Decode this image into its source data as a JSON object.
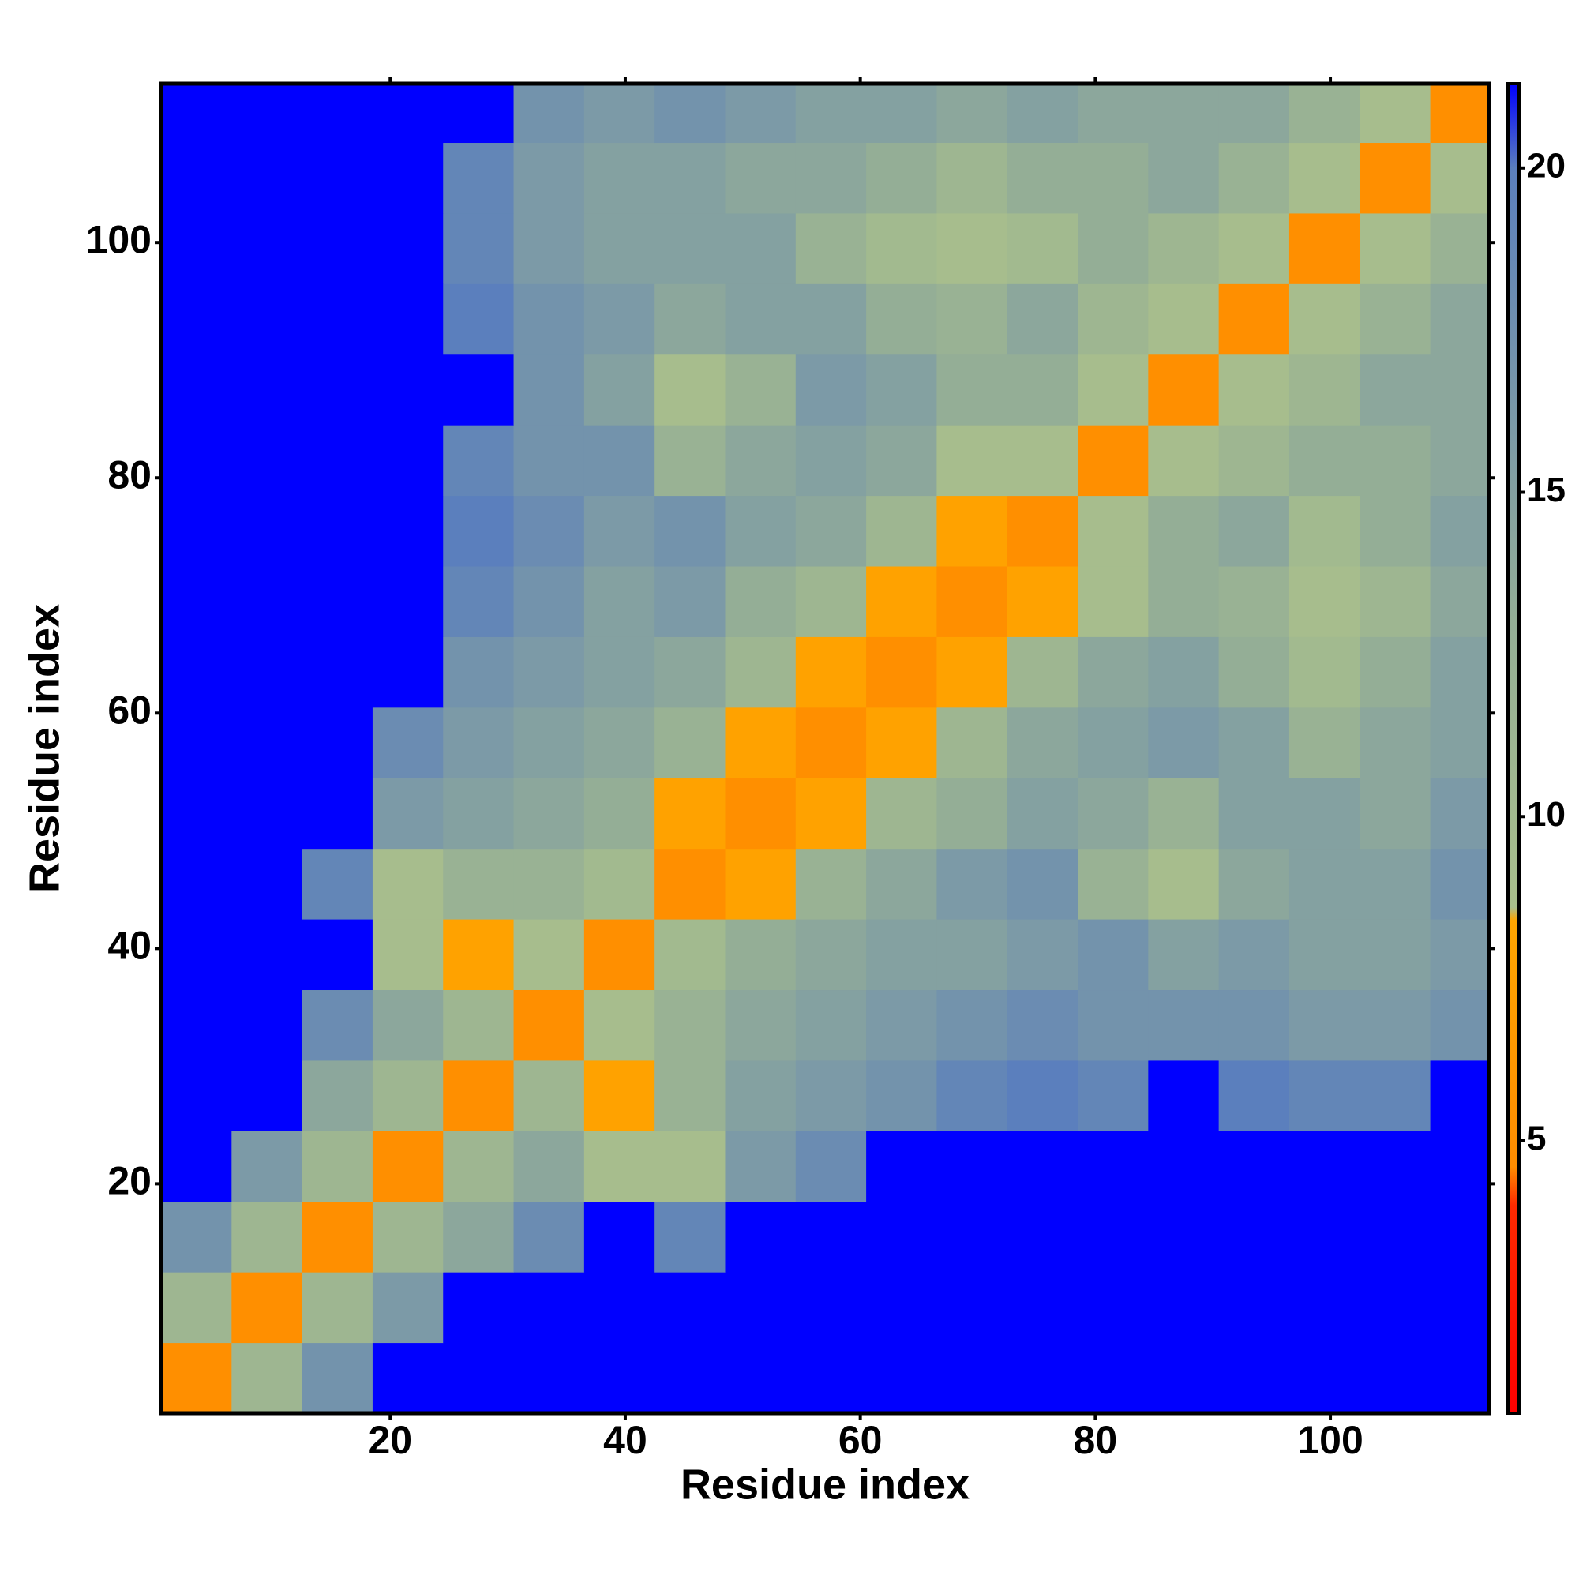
{
  "chart_data": {
    "type": "heatmap",
    "xlabel": "Residue index",
    "ylabel": "Residue index",
    "xlim": [
      0.5,
      113.5
    ],
    "ylim": [
      0.5,
      113.5
    ],
    "xticks": [
      20,
      40,
      60,
      80,
      100
    ],
    "yticks": [
      20,
      40,
      60,
      80,
      100
    ],
    "xbins": [
      0.5,
      6.5,
      12.5,
      18.5,
      24.5,
      30.5,
      36.5,
      42.5,
      48.5,
      54.5,
      60.5,
      66.5,
      72.5,
      78.5,
      84.5,
      90.5,
      96.5,
      102.5,
      108.5,
      113.5
    ],
    "ybins": [
      0.5,
      6.5,
      12.5,
      18.5,
      24.5,
      30.5,
      36.5,
      42.5,
      48.5,
      54.5,
      60.5,
      66.5,
      72.5,
      78.5,
      84.5,
      90.5,
      96.5,
      102.5,
      108.5,
      113.5
    ],
    "clim": [
      0.8,
      21.3
    ],
    "cticks": [
      5,
      10,
      15,
      20
    ],
    "colorscale": [
      [
        0.8,
        "#ff0000"
      ],
      [
        4,
        "#ff2a00"
      ],
      [
        4.6,
        "#ff8c00"
      ],
      [
        8.4,
        "#ffa500"
      ],
      [
        8.6,
        "#a9bf8c"
      ],
      [
        13,
        "#94ae96"
      ],
      [
        20,
        "#5b7fbd"
      ],
      [
        21.3,
        "#0000ff"
      ]
    ],
    "values": [
      [
        5,
        11,
        17,
        21.3,
        21.3,
        21.3,
        21.3,
        21.3,
        21.3,
        21.3,
        21.3,
        21.3,
        21.3,
        21.3,
        21.3,
        21.3,
        21.3,
        21.3,
        21.3
      ],
      [
        11,
        5,
        11,
        16,
        21.3,
        21.3,
        21.3,
        21.3,
        21.3,
        21.3,
        21.3,
        21.3,
        21.3,
        21.3,
        21.3,
        21.3,
        21.3,
        21.3,
        21.3
      ],
      [
        17,
        11,
        5,
        11,
        14,
        18,
        21.3,
        19,
        21.3,
        21.3,
        21.3,
        21.3,
        21.3,
        21.3,
        21.3,
        21.3,
        21.3,
        21.3,
        21.3
      ],
      [
        21.3,
        16,
        11,
        5,
        11,
        14,
        9,
        9,
        16,
        18,
        21.3,
        21.3,
        21.3,
        21.3,
        21.3,
        21.3,
        21.3,
        21.3,
        21.3
      ],
      [
        21.3,
        21.3,
        14,
        11,
        5,
        11,
        8,
        12,
        15,
        16,
        17,
        19,
        20,
        19,
        21.3,
        20,
        19,
        19,
        21.3
      ],
      [
        21.3,
        21.3,
        18,
        14,
        11,
        5,
        9,
        12,
        14,
        15,
        16,
        17,
        18,
        17,
        17,
        17,
        16,
        16,
        17
      ],
      [
        21.3,
        21.3,
        21.3,
        9,
        8,
        9,
        5,
        10,
        13,
        14,
        15,
        15,
        16,
        17,
        15,
        16,
        15,
        15,
        16
      ],
      [
        21.3,
        21.3,
        19,
        9,
        12,
        12,
        10,
        5,
        8,
        12,
        14,
        16,
        17,
        12,
        9,
        14,
        15,
        15,
        17
      ],
      [
        21.3,
        21.3,
        21.3,
        16,
        15,
        14,
        13,
        8,
        5,
        8,
        11,
        13,
        15,
        14,
        12,
        15,
        15,
        14,
        16
      ],
      [
        21.3,
        21.3,
        21.3,
        18,
        16,
        15,
        14,
        12,
        8,
        5,
        8,
        11,
        14,
        15,
        16,
        15,
        12,
        14,
        15
      ],
      [
        21.3,
        21.3,
        21.3,
        21.3,
        17,
        16,
        15,
        14,
        11,
        8,
        5,
        8,
        11,
        14,
        15,
        13,
        10,
        13,
        15
      ],
      [
        21.3,
        21.3,
        21.3,
        21.3,
        19,
        17,
        15,
        16,
        13,
        11,
        8,
        5,
        8,
        9,
        13,
        12,
        9,
        11,
        14
      ],
      [
        21.3,
        21.3,
        21.3,
        21.3,
        20,
        18,
        16,
        17,
        15,
        14,
        11,
        8,
        5,
        9,
        13,
        14,
        10,
        13,
        15
      ],
      [
        21.3,
        21.3,
        21.3,
        21.3,
        19,
        17,
        17,
        12,
        14,
        15,
        14,
        9,
        9,
        5,
        9,
        11,
        13,
        13,
        14
      ],
      [
        21.3,
        21.3,
        21.3,
        21.3,
        21.3,
        17,
        15,
        9,
        12,
        16,
        15,
        13,
        13,
        9,
        5,
        9,
        11,
        14,
        14
      ],
      [
        21.3,
        21.3,
        21.3,
        21.3,
        20,
        17,
        16,
        14,
        15,
        15,
        13,
        12,
        14,
        11,
        9,
        5,
        9,
        12,
        14
      ],
      [
        21.3,
        21.3,
        21.3,
        21.3,
        19,
        16,
        15,
        15,
        15,
        12,
        10,
        9,
        10,
        13,
        11,
        9,
        5,
        9,
        12
      ],
      [
        21.3,
        21.3,
        21.3,
        21.3,
        19,
        16,
        15,
        15,
        14,
        14,
        13,
        11,
        13,
        13,
        14,
        12,
        9,
        5,
        9
      ],
      [
        21.3,
        21.3,
        21.3,
        21.3,
        21.3,
        17,
        16,
        17,
        16,
        15,
        15,
        14,
        15,
        14,
        14,
        14,
        12,
        9,
        5
      ]
    ]
  }
}
